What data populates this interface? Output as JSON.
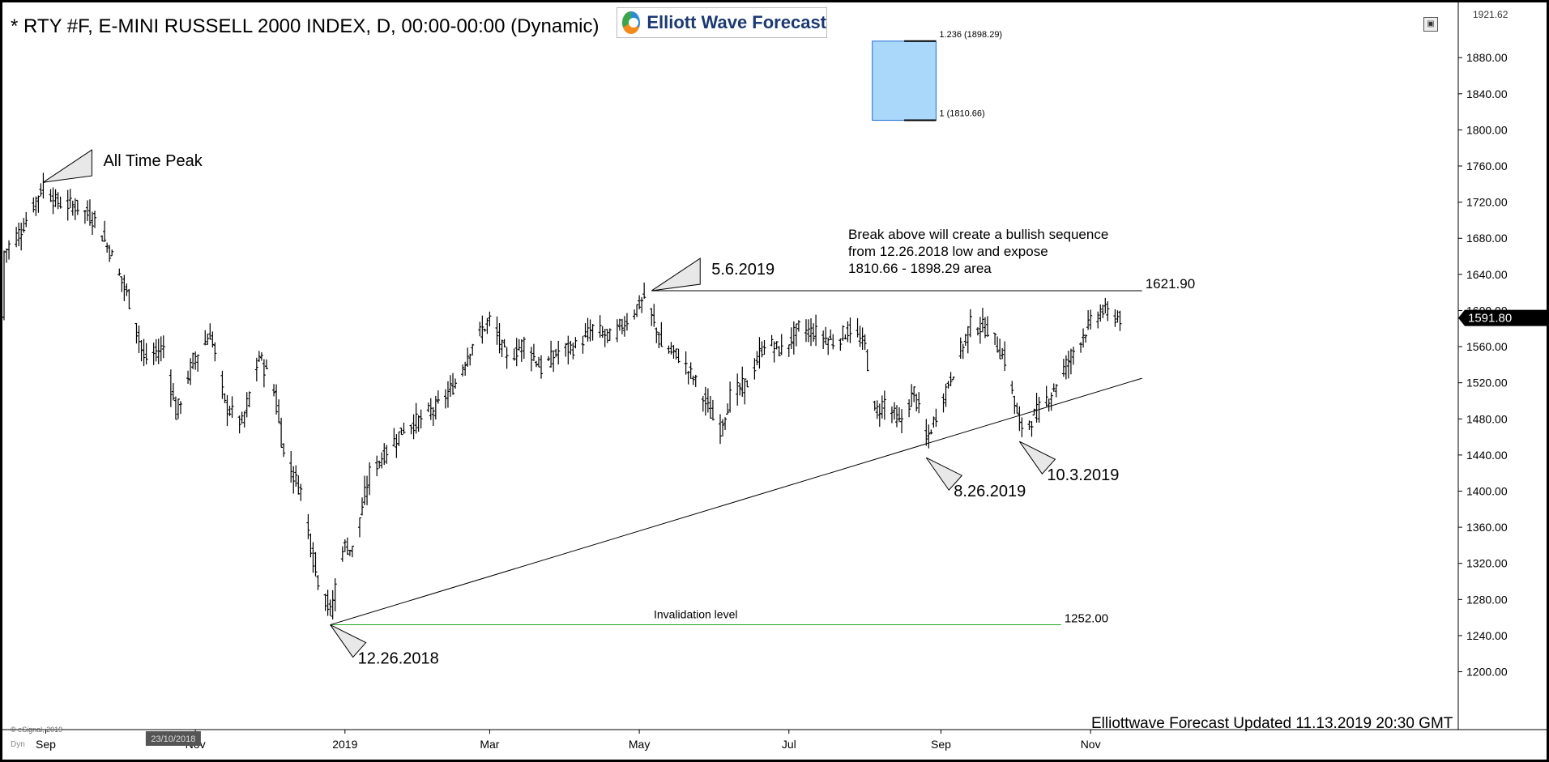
{
  "window": {
    "title": "* RTY #F, E-MINI RUSSELL 2000 INDEX, D, 00:00-00:00 (Dynamic)",
    "logo_text": "Elliott Wave Forecast",
    "copyright": "© eSignal, 2019",
    "dyn_label": "Dyn",
    "footer": "Elliottwave Forecast Updated 11.13.2019 20:30 GMT"
  },
  "colors": {
    "bars": "#000000",
    "trendline": "#000000",
    "invalidation_line": "#22aa22",
    "target_box_fill": "#aad8fb",
    "target_box_border": "#1a6bd6",
    "last_price_tag": "#000000"
  },
  "chart_data": {
    "type": "ohlc",
    "symbol": "RTY #F",
    "interval": "D",
    "ylim": [
      1170,
      1925
    ],
    "y_ticks": [
      1200,
      1240,
      1280,
      1320,
      1360,
      1400,
      1440,
      1480,
      1520,
      1560,
      1600,
      1640,
      1680,
      1720,
      1760,
      1800,
      1840,
      1880
    ],
    "y_tick_labels": [
      "1200.00",
      "1240.00",
      "1280.00",
      "1320.00",
      "1360.00",
      "1400.00",
      "1440.00",
      "1480.00",
      "1520.00",
      "1560.00",
      "1600.00",
      "1640.00",
      "1680.00",
      "1720.00",
      "1760.00",
      "1800.00",
      "1840.00",
      "1880.00"
    ],
    "x_range": [
      "2018-08-15",
      "2019-12-02"
    ],
    "x_ticks": [
      {
        "date": "2018-09-01",
        "label": "Sep"
      },
      {
        "date": "2018-11-01",
        "label": "Nov"
      },
      {
        "date": "2019-01-01",
        "label": "2019"
      },
      {
        "date": "2019-03-01",
        "label": "Mar"
      },
      {
        "date": "2019-05-01",
        "label": "May"
      },
      {
        "date": "2019-07-01",
        "label": "Jul"
      },
      {
        "date": "2019-09-01",
        "label": "Sep"
      },
      {
        "date": "2019-11-01",
        "label": "Nov"
      }
    ],
    "crosshair_date": {
      "date": "2018-10-23",
      "label": "23/10/2018"
    },
    "top_price_label": "1921.62",
    "last_price": 1591.8,
    "last_price_label": "1591.80",
    "close_path": [
      [
        "2018-08-15",
        1665
      ],
      [
        "2018-08-22",
        1690
      ],
      [
        "2018-08-31",
        1740
      ],
      [
        "2018-09-05",
        1720
      ],
      [
        "2018-09-14",
        1715
      ],
      [
        "2018-09-21",
        1700
      ],
      [
        "2018-09-28",
        1660
      ],
      [
        "2018-10-05",
        1610
      ],
      [
        "2018-10-11",
        1545
      ],
      [
        "2018-10-19",
        1560
      ],
      [
        "2018-10-24",
        1485
      ],
      [
        "2018-10-31",
        1545
      ],
      [
        "2018-11-07",
        1575
      ],
      [
        "2018-11-13",
        1495
      ],
      [
        "2018-11-20",
        1475
      ],
      [
        "2018-11-27",
        1550
      ],
      [
        "2018-12-03",
        1510
      ],
      [
        "2018-12-07",
        1440
      ],
      [
        "2018-12-14",
        1400
      ],
      [
        "2018-12-20",
        1310
      ],
      [
        "2018-12-26",
        1265
      ],
      [
        "2018-12-31",
        1340
      ],
      [
        "2019-01-04",
        1335
      ],
      [
        "2019-01-11",
        1420
      ],
      [
        "2019-01-18",
        1445
      ],
      [
        "2019-01-25",
        1470
      ],
      [
        "2019-02-01",
        1480
      ],
      [
        "2019-02-08",
        1495
      ],
      [
        "2019-02-15",
        1520
      ],
      [
        "2019-02-22",
        1565
      ],
      [
        "2019-03-01",
        1590
      ],
      [
        "2019-03-08",
        1545
      ],
      [
        "2019-03-15",
        1565
      ],
      [
        "2019-03-22",
        1535
      ],
      [
        "2019-03-29",
        1555
      ],
      [
        "2019-04-05",
        1560
      ],
      [
        "2019-04-12",
        1580
      ],
      [
        "2019-04-19",
        1570
      ],
      [
        "2019-04-26",
        1590
      ],
      [
        "2019-05-03",
        1615
      ],
      [
        "2019-05-10",
        1560
      ],
      [
        "2019-05-17",
        1550
      ],
      [
        "2019-05-24",
        1520
      ],
      [
        "2019-05-31",
        1480
      ],
      [
        "2019-06-03",
        1470
      ],
      [
        "2019-06-07",
        1505
      ],
      [
        "2019-06-14",
        1520
      ],
      [
        "2019-06-21",
        1565
      ],
      [
        "2019-06-28",
        1555
      ],
      [
        "2019-07-05",
        1580
      ],
      [
        "2019-07-12",
        1575
      ],
      [
        "2019-07-19",
        1565
      ],
      [
        "2019-07-26",
        1580
      ],
      [
        "2019-08-01",
        1560
      ],
      [
        "2019-08-05",
        1485
      ],
      [
        "2019-08-09",
        1500
      ],
      [
        "2019-08-15",
        1475
      ],
      [
        "2019-08-21",
        1510
      ],
      [
        "2019-08-26",
        1455
      ],
      [
        "2019-08-30",
        1485
      ],
      [
        "2019-09-06",
        1535
      ],
      [
        "2019-09-13",
        1585
      ],
      [
        "2019-09-20",
        1580
      ],
      [
        "2019-09-27",
        1545
      ],
      [
        "2019-10-03",
        1470
      ],
      [
        "2019-10-08",
        1480
      ],
      [
        "2019-10-15",
        1505
      ],
      [
        "2019-10-22",
        1540
      ],
      [
        "2019-10-29",
        1575
      ],
      [
        "2019-11-05",
        1600
      ],
      [
        "2019-11-13",
        1591.8
      ]
    ],
    "horizontal_lines": [
      {
        "label": "1621.90",
        "value": 1621.9,
        "from": "2019-05-06",
        "to": "2019-11-22"
      },
      {
        "label": "1252.00",
        "value": 1252.0,
        "from": "2018-12-26",
        "to": "2019-10-20"
      }
    ],
    "invalidation_label": "Invalidation level",
    "trendline": {
      "from": [
        "2018-12-26",
        1252
      ],
      "to": [
        "2019-11-22",
        1525
      ]
    },
    "target_box": {
      "upper": 1898.29,
      "lower": 1810.66,
      "from": "2019-08-04",
      "to": "2019-08-30",
      "upper_label": "1.236 (1898.29)",
      "lower_label": "1 (1810.66)"
    },
    "annotations": [
      {
        "label": "All Time Peak",
        "date": "2018-08-31",
        "value": 1742,
        "side": "above"
      },
      {
        "label": "5.6.2019",
        "date": "2019-05-06",
        "value": 1621.9,
        "side": "above"
      },
      {
        "label": "12.26.2018",
        "date": "2018-12-26",
        "value": 1252,
        "side": "below"
      },
      {
        "label": "8.26.2019",
        "date": "2019-08-26",
        "value": 1437,
        "side": "below"
      },
      {
        "label": "10.3.2019",
        "date": "2019-10-03",
        "value": 1455,
        "side": "below"
      }
    ],
    "note_lines": [
      "Break above will create a bullish sequence",
      "from 12.26.2018 low and expose",
      "1810.66 - 1898.29 area"
    ]
  }
}
